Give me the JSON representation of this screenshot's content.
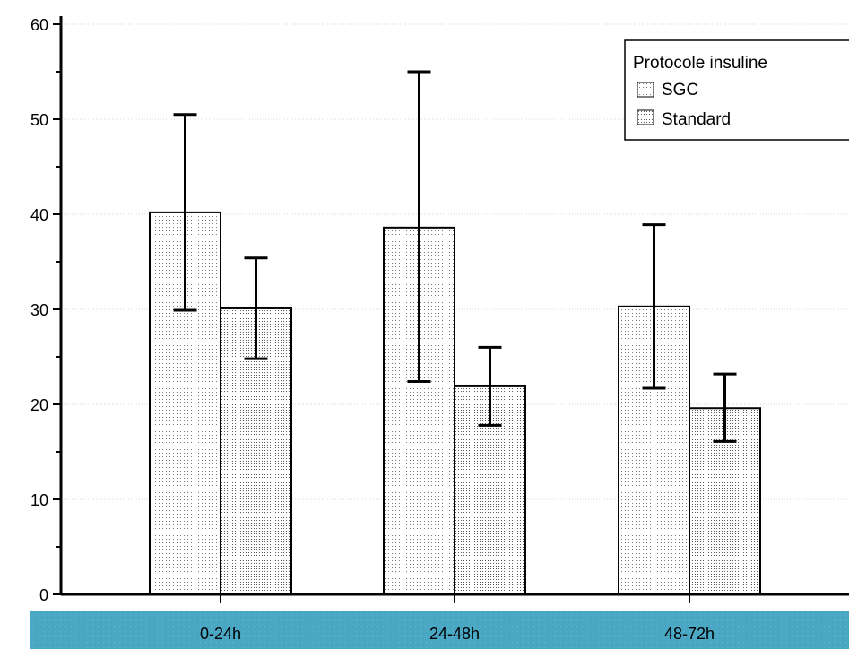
{
  "chart_data": {
    "type": "bar",
    "title": "",
    "xlabel": "",
    "ylabel": "",
    "categories": [
      "0-24h",
      "24-48h",
      "48-72h"
    ],
    "series": [
      {
        "name": "SGC",
        "values": [
          40.2,
          38.6,
          30.3
        ],
        "err_low": [
          29.9,
          22.4,
          21.7
        ],
        "err_high": [
          50.5,
          55.0,
          38.9
        ],
        "pattern": "light-dots"
      },
      {
        "name": "Standard",
        "values": [
          30.1,
          21.9,
          19.6
        ],
        "err_low": [
          24.8,
          17.8,
          16.1
        ],
        "err_high": [
          35.4,
          26.0,
          23.2
        ],
        "pattern": "dense-dots"
      }
    ],
    "ylim": [
      0,
      60
    ],
    "yticks": [
      0,
      10,
      20,
      30,
      40,
      50,
      60
    ],
    "grid": "horizontal-dotted",
    "legend": {
      "title": "Protocole insuline",
      "position": "top-right"
    },
    "colors": {
      "axis": "#000000",
      "grid": "#d9d9d9",
      "band": "#4aa8c4",
      "bar_fill": "#ffffff",
      "dots": "#666666"
    }
  }
}
